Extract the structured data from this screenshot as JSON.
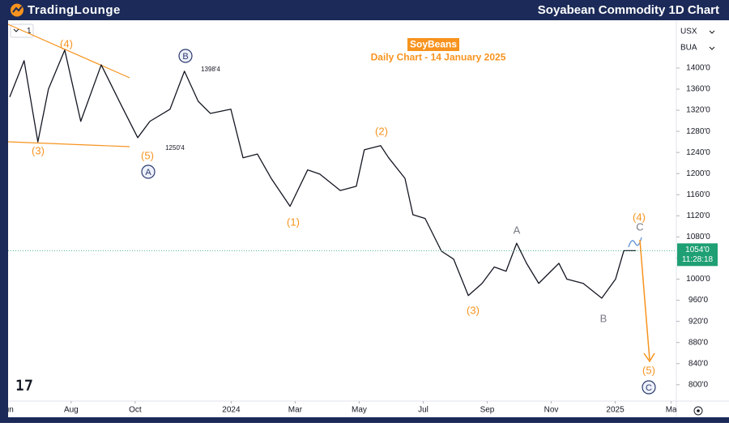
{
  "header": {
    "logo": "TradingLounge",
    "title": "Soyabean Commodity 1D Chart"
  },
  "chart_data": {
    "type": "line",
    "title": "SoyBeans",
    "subtitle": "Daily Chart - 14 January 2025",
    "color": "#131722",
    "x": [
      0.08,
      0.53,
      0.96,
      1.29,
      1.8,
      2.3,
      2.94,
      3.57,
      4.08,
      4.46,
      5.09,
      5.54,
      5.97,
      6.35,
      6.99,
      7.37,
      7.82,
      8.25,
      8.84,
      9.39,
      9.77,
      10.41,
      10.91,
      11.16,
      11.67,
      11.92,
      12.43,
      12.68,
      13.06,
      13.57,
      13.95,
      14.41,
      14.84,
      15.22,
      15.59,
      15.92,
      16.23,
      16.61,
      17.24,
      17.49,
      18.0,
      18.58,
      19.01,
      19.27,
      19.65
    ],
    "values": [
      1345,
      1414,
      1260,
      1360,
      1434,
      1299,
      1406,
      1329,
      1268,
      1299,
      1322,
      1394,
      1337,
      1314,
      1322,
      1230,
      1237,
      1191,
      1138,
      1207,
      1199,
      1168,
      1176,
      1245,
      1253,
      1230,
      1191,
      1122,
      1115,
      1053,
      1038,
      969,
      992,
      1023,
      1015,
      1068,
      1030,
      992,
      1030,
      1000,
      992,
      964,
      1000,
      1054,
      1054
    ],
    "xlim": [
      0.03,
      20.91
    ],
    "xticks": [
      {
        "value": 0,
        "label": "Jun"
      },
      {
        "value": 2,
        "label": "Aug"
      },
      {
        "value": 4,
        "label": "Oct"
      },
      {
        "value": 7,
        "label": "2024"
      },
      {
        "value": 9,
        "label": "Mar"
      },
      {
        "value": 11,
        "label": "May"
      },
      {
        "value": 13,
        "label": "Jul"
      },
      {
        "value": 15,
        "label": "Sep"
      },
      {
        "value": 17,
        "label": "Nov"
      },
      {
        "value": 19,
        "label": "2025"
      },
      {
        "value": 20.75,
        "label": "Ma"
      }
    ],
    "ylim": [
      769,
      1490.5
    ],
    "yticks": [
      {
        "value": 1400,
        "label": "1400'0"
      },
      {
        "value": 1360,
        "label": "1360'0"
      },
      {
        "value": 1320,
        "label": "1320'0"
      },
      {
        "value": 1280,
        "label": "1280'0"
      },
      {
        "value": 1240,
        "label": "1240'0"
      },
      {
        "value": 1200,
        "label": "1200'0"
      },
      {
        "value": 1160,
        "label": "1160'0"
      },
      {
        "value": 1120,
        "label": "1120'0"
      },
      {
        "value": 1080,
        "label": "1080'0"
      },
      {
        "value": 1040,
        "label": "1040'0"
      },
      {
        "value": 1000,
        "label": "1000'0"
      },
      {
        "value": 960,
        "label": "960'0"
      },
      {
        "value": 920,
        "label": "920'0"
      },
      {
        "value": 880,
        "label": "880'0"
      },
      {
        "value": 840,
        "label": "840'0"
      },
      {
        "value": 800,
        "label": "800'0"
      }
    ],
    "grid": false,
    "last_price": {
      "value": 1054,
      "label": "1054'0"
    },
    "last_price_color": "#1e9f74",
    "time_label": "11:28:18",
    "currency": "USX",
    "unit": "BUA",
    "interval": "1",
    "annotations": [
      {
        "text": "(4)",
        "color": "#f7931e",
        "style": "plain"
      },
      {
        "text": "(3)",
        "color": "#f7931e",
        "style": "plain"
      },
      {
        "text": "(5)",
        "color": "#f7931e",
        "style": "plain"
      },
      {
        "text": "A",
        "color": "#2a3a6e",
        "style": "circle"
      },
      {
        "text": "B",
        "color": "#2a3a6e",
        "style": "circle"
      },
      {
        "text": "1398'4",
        "color": "#131722",
        "style": "small"
      },
      {
        "text": "1250'4",
        "color": "#131722",
        "style": "small"
      },
      {
        "text": "(2)",
        "color": "#f7931e",
        "style": "plain"
      },
      {
        "text": "(1)",
        "color": "#f7931e",
        "style": "plain"
      },
      {
        "text": "(3)",
        "color": "#f7931e",
        "style": "plain"
      },
      {
        "text": "A",
        "color": "#787b86",
        "style": "plain"
      },
      {
        "text": "B",
        "color": "#787b86",
        "style": "plain"
      },
      {
        "text": "(4)",
        "color": "#f7931e",
        "style": "plain"
      },
      {
        "text": "C",
        "color": "#787b86",
        "style": "plain"
      },
      {
        "text": "(5)",
        "color": "#f7931e",
        "style": "plain"
      },
      {
        "text": "C",
        "color": "#2a3a6e",
        "style": "circle"
      }
    ]
  }
}
